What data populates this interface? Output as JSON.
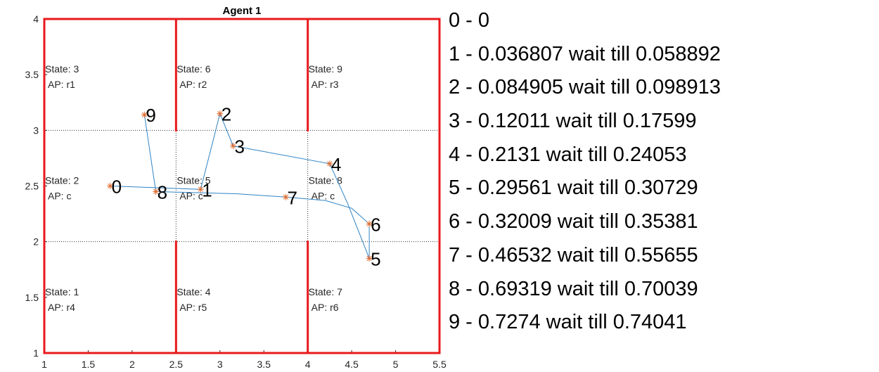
{
  "chart_data": {
    "type": "line",
    "title": "Agent 1",
    "xlim": [
      1,
      5.5
    ],
    "ylim": [
      1,
      4
    ],
    "xticks": [
      "1",
      "1.5",
      "2",
      "2.5",
      "3",
      "3.5",
      "4",
      "4.5",
      "5",
      "5.5"
    ],
    "yticks": [
      "1",
      "1.5",
      "2",
      "2.5",
      "3",
      "3.5",
      "4"
    ],
    "grid": "dotted lines at x=2.5, x=4, y=2, y=3",
    "walls": [
      {
        "x1": 1,
        "y1": 1,
        "x2": 5.5,
        "y2": 1
      },
      {
        "x1": 5.5,
        "y1": 1,
        "x2": 5.5,
        "y2": 4
      },
      {
        "x1": 5.5,
        "y1": 4,
        "x2": 1,
        "y2": 4
      },
      {
        "x1": 1,
        "y1": 4,
        "x2": 1,
        "y2": 1
      },
      {
        "x1": 2.5,
        "y1": 3,
        "x2": 2.5,
        "y2": 4
      },
      {
        "x1": 4,
        "y1": 3,
        "x2": 4,
        "y2": 4
      },
      {
        "x1": 2.5,
        "y1": 1,
        "x2": 2.5,
        "y2": 2
      },
      {
        "x1": 4,
        "y1": 1,
        "x2": 4,
        "y2": 2
      }
    ],
    "states": [
      {
        "state": "State: 3",
        "ap": "AP:  r1",
        "x": 1,
        "y": 3.5
      },
      {
        "state": "State: 6",
        "ap": "AP:  r2",
        "x": 2.5,
        "y": 3.5
      },
      {
        "state": "State: 9",
        "ap": "AP:  r3",
        "x": 4,
        "y": 3.5
      },
      {
        "state": "State: 2",
        "ap": "AP:  c",
        "x": 1,
        "y": 2.5
      },
      {
        "state": "State: 5",
        "ap": "AP:  c",
        "x": 2.5,
        "y": 2.5
      },
      {
        "state": "State: 8",
        "ap": "AP:  c",
        "x": 4,
        "y": 2.5
      },
      {
        "state": "State: 1",
        "ap": "AP:  r4",
        "x": 1,
        "y": 1.5
      },
      {
        "state": "State: 4",
        "ap": "AP:  r5",
        "x": 2.5,
        "y": 1.5
      },
      {
        "state": "State: 7",
        "ap": "AP:  r6",
        "x": 4,
        "y": 1.5
      }
    ],
    "waypoints": [
      {
        "label": "0",
        "x": 1.75,
        "y": 2.5
      },
      {
        "label": "1",
        "x": 2.78,
        "y": 2.47
      },
      {
        "label": "2",
        "x": 3.0,
        "y": 3.15
      },
      {
        "label": "3",
        "x": 3.15,
        "y": 2.86
      },
      {
        "label": "4",
        "x": 4.25,
        "y": 2.7
      },
      {
        "label": "5",
        "x": 4.7,
        "y": 1.85
      },
      {
        "label": "6",
        "x": 4.7,
        "y": 2.16
      },
      {
        "label": "7",
        "x": 3.75,
        "y": 2.4
      },
      {
        "label": "8",
        "x": 2.27,
        "y": 2.45
      },
      {
        "label": "9",
        "x": 2.14,
        "y": 3.14
      }
    ],
    "series": [
      {
        "values": [
          {
            "x": 1.75,
            "y": 2.5
          },
          {
            "x": 2.78,
            "y": 2.47
          },
          {
            "x": 3.0,
            "y": 3.15
          },
          {
            "x": 3.15,
            "y": 2.86
          },
          {
            "x": 4.25,
            "y": 2.7
          },
          {
            "x": 4.45,
            "y": 2.35
          },
          {
            "x": 4.7,
            "y": 1.85
          },
          {
            "x": 4.7,
            "y": 2.16
          },
          {
            "x": 4.5,
            "y": 2.3
          },
          {
            "x": 4.2,
            "y": 2.37
          },
          {
            "x": 3.75,
            "y": 2.4
          },
          {
            "x": 3.2,
            "y": 2.43
          },
          {
            "x": 2.27,
            "y": 2.45
          },
          {
            "x": 2.14,
            "y": 3.14
          }
        ]
      }
    ],
    "colors": {
      "wall": "#e8191c",
      "path": "#2f84c5",
      "marker": "#e06a2e",
      "grid": "#333333"
    }
  },
  "legend": [
    "0 - 0",
    "1 - 0.036807 wait till 0.058892",
    "2 - 0.084905 wait till 0.098913",
    "3 - 0.12011 wait till 0.17599",
    "4 - 0.2131 wait till 0.24053",
    "5 - 0.29561 wait till 0.30729",
    "6 - 0.32009 wait till 0.35381",
    "7 - 0.46532 wait till 0.55655",
    "8 - 0.69319 wait till 0.70039",
    "9 - 0.7274 wait till 0.74041"
  ]
}
